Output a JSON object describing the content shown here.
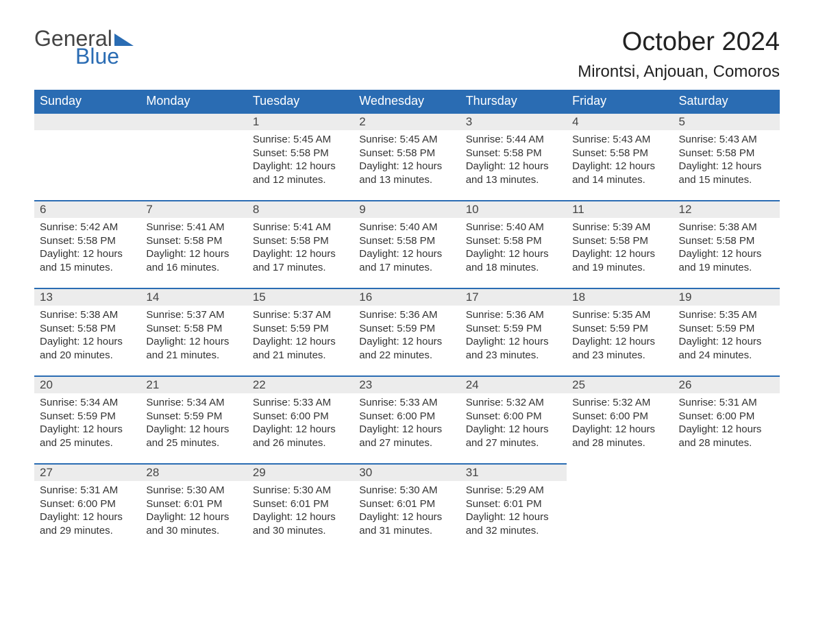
{
  "logo": {
    "general": "General",
    "blue": "Blue"
  },
  "title": "October 2024",
  "location": "Mirontsi, Anjouan, Comoros",
  "colors": {
    "header_bg": "#2a6cb3",
    "daynum_bg": "#ececec",
    "border": "#2a6cb3",
    "page_bg": "#ffffff"
  },
  "weekdays": [
    "Sunday",
    "Monday",
    "Tuesday",
    "Wednesday",
    "Thursday",
    "Friday",
    "Saturday"
  ],
  "weeks": [
    [
      null,
      null,
      {
        "n": "1",
        "sunrise": "5:45 AM",
        "sunset": "5:58 PM",
        "daylight": "12 hours and 12 minutes."
      },
      {
        "n": "2",
        "sunrise": "5:45 AM",
        "sunset": "5:58 PM",
        "daylight": "12 hours and 13 minutes."
      },
      {
        "n": "3",
        "sunrise": "5:44 AM",
        "sunset": "5:58 PM",
        "daylight": "12 hours and 13 minutes."
      },
      {
        "n": "4",
        "sunrise": "5:43 AM",
        "sunset": "5:58 PM",
        "daylight": "12 hours and 14 minutes."
      },
      {
        "n": "5",
        "sunrise": "5:43 AM",
        "sunset": "5:58 PM",
        "daylight": "12 hours and 15 minutes."
      }
    ],
    [
      {
        "n": "6",
        "sunrise": "5:42 AM",
        "sunset": "5:58 PM",
        "daylight": "12 hours and 15 minutes."
      },
      {
        "n": "7",
        "sunrise": "5:41 AM",
        "sunset": "5:58 PM",
        "daylight": "12 hours and 16 minutes."
      },
      {
        "n": "8",
        "sunrise": "5:41 AM",
        "sunset": "5:58 PM",
        "daylight": "12 hours and 17 minutes."
      },
      {
        "n": "9",
        "sunrise": "5:40 AM",
        "sunset": "5:58 PM",
        "daylight": "12 hours and 17 minutes."
      },
      {
        "n": "10",
        "sunrise": "5:40 AM",
        "sunset": "5:58 PM",
        "daylight": "12 hours and 18 minutes."
      },
      {
        "n": "11",
        "sunrise": "5:39 AM",
        "sunset": "5:58 PM",
        "daylight": "12 hours and 19 minutes."
      },
      {
        "n": "12",
        "sunrise": "5:38 AM",
        "sunset": "5:58 PM",
        "daylight": "12 hours and 19 minutes."
      }
    ],
    [
      {
        "n": "13",
        "sunrise": "5:38 AM",
        "sunset": "5:58 PM",
        "daylight": "12 hours and 20 minutes."
      },
      {
        "n": "14",
        "sunrise": "5:37 AM",
        "sunset": "5:58 PM",
        "daylight": "12 hours and 21 minutes."
      },
      {
        "n": "15",
        "sunrise": "5:37 AM",
        "sunset": "5:59 PM",
        "daylight": "12 hours and 21 minutes."
      },
      {
        "n": "16",
        "sunrise": "5:36 AM",
        "sunset": "5:59 PM",
        "daylight": "12 hours and 22 minutes."
      },
      {
        "n": "17",
        "sunrise": "5:36 AM",
        "sunset": "5:59 PM",
        "daylight": "12 hours and 23 minutes."
      },
      {
        "n": "18",
        "sunrise": "5:35 AM",
        "sunset": "5:59 PM",
        "daylight": "12 hours and 23 minutes."
      },
      {
        "n": "19",
        "sunrise": "5:35 AM",
        "sunset": "5:59 PM",
        "daylight": "12 hours and 24 minutes."
      }
    ],
    [
      {
        "n": "20",
        "sunrise": "5:34 AM",
        "sunset": "5:59 PM",
        "daylight": "12 hours and 25 minutes."
      },
      {
        "n": "21",
        "sunrise": "5:34 AM",
        "sunset": "5:59 PM",
        "daylight": "12 hours and 25 minutes."
      },
      {
        "n": "22",
        "sunrise": "5:33 AM",
        "sunset": "6:00 PM",
        "daylight": "12 hours and 26 minutes."
      },
      {
        "n": "23",
        "sunrise": "5:33 AM",
        "sunset": "6:00 PM",
        "daylight": "12 hours and 27 minutes."
      },
      {
        "n": "24",
        "sunrise": "5:32 AM",
        "sunset": "6:00 PM",
        "daylight": "12 hours and 27 minutes."
      },
      {
        "n": "25",
        "sunrise": "5:32 AM",
        "sunset": "6:00 PM",
        "daylight": "12 hours and 28 minutes."
      },
      {
        "n": "26",
        "sunrise": "5:31 AM",
        "sunset": "6:00 PM",
        "daylight": "12 hours and 28 minutes."
      }
    ],
    [
      {
        "n": "27",
        "sunrise": "5:31 AM",
        "sunset": "6:00 PM",
        "daylight": "12 hours and 29 minutes."
      },
      {
        "n": "28",
        "sunrise": "5:30 AM",
        "sunset": "6:01 PM",
        "daylight": "12 hours and 30 minutes."
      },
      {
        "n": "29",
        "sunrise": "5:30 AM",
        "sunset": "6:01 PM",
        "daylight": "12 hours and 30 minutes."
      },
      {
        "n": "30",
        "sunrise": "5:30 AM",
        "sunset": "6:01 PM",
        "daylight": "12 hours and 31 minutes."
      },
      {
        "n": "31",
        "sunrise": "5:29 AM",
        "sunset": "6:01 PM",
        "daylight": "12 hours and 32 minutes."
      },
      null,
      null
    ]
  ],
  "labels": {
    "sunrise": "Sunrise: ",
    "sunset": "Sunset: ",
    "daylight": "Daylight: "
  }
}
